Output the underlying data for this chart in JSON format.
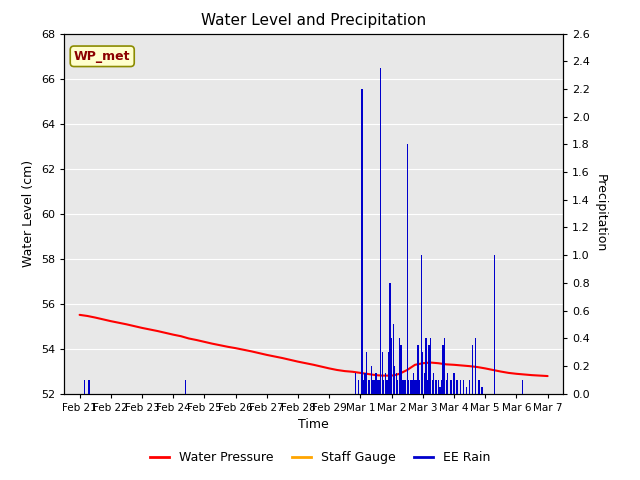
{
  "title": "Water Level and Precipitation",
  "xlabel": "Time",
  "ylabel_left": "Water Level (cm)",
  "ylabel_right": "Precipitation",
  "annotation": "WP_met",
  "plot_bg_color": "#e8e8e8",
  "ylim_left": [
    52,
    68
  ],
  "ylim_right": [
    0.0,
    2.6
  ],
  "yticks_left": [
    52,
    54,
    56,
    58,
    60,
    62,
    64,
    66,
    68
  ],
  "yticks_right": [
    0.0,
    0.2,
    0.4,
    0.6,
    0.8,
    1.0,
    1.2,
    1.4,
    1.6,
    1.8,
    2.0,
    2.2,
    2.4,
    2.6
  ],
  "water_pressure_color": "#ff0000",
  "staff_gauge_color": "#ffa500",
  "ee_rain_color": "#0000cc",
  "annotation_box_color": "#ffffcc",
  "annotation_text_color": "#8b0000",
  "annotation_border_color": "#8b8b00",
  "wp_x": [
    0,
    0.25,
    0.5,
    0.75,
    1,
    1.25,
    1.5,
    1.75,
    2,
    2.25,
    2.5,
    2.75,
    3,
    3.25,
    3.5,
    3.75,
    4,
    4.25,
    4.5,
    4.75,
    5,
    5.25,
    5.5,
    5.75,
    6,
    6.25,
    6.5,
    6.75,
    7,
    7.25,
    7.5,
    7.75,
    8,
    8.25,
    8.5,
    8.75,
    9,
    9.1,
    9.2,
    9.3,
    9.4,
    9.5,
    9.6,
    9.7,
    9.8,
    9.9,
    10,
    10.1,
    10.25,
    10.5,
    10.75,
    11,
    11.25,
    11.5,
    11.75,
    12,
    12.25,
    12.5,
    12.75,
    13,
    13.25,
    13.5,
    13.75,
    14,
    14.25,
    14.5,
    14.75,
    15
  ],
  "wp_y": [
    55.5,
    55.45,
    55.38,
    55.3,
    55.22,
    55.15,
    55.08,
    55.0,
    54.92,
    54.85,
    54.78,
    54.7,
    54.62,
    54.55,
    54.45,
    54.38,
    54.3,
    54.22,
    54.15,
    54.08,
    54.02,
    53.95,
    53.88,
    53.8,
    53.72,
    53.65,
    53.58,
    53.5,
    53.42,
    53.35,
    53.28,
    53.2,
    53.12,
    53.05,
    53.0,
    52.97,
    52.92,
    52.9,
    52.88,
    52.86,
    52.84,
    52.82,
    52.81,
    52.8,
    52.8,
    52.8,
    52.8,
    52.82,
    52.88,
    53.05,
    53.28,
    53.35,
    53.38,
    53.35,
    53.3,
    53.28,
    53.25,
    53.22,
    53.18,
    53.12,
    53.05,
    52.98,
    52.92,
    52.88,
    52.85,
    52.82,
    52.8,
    52.78
  ],
  "rain_x": [
    0.15,
    0.3,
    3.4,
    8.85,
    8.95,
    9.05,
    9.1,
    9.15,
    9.2,
    9.25,
    9.3,
    9.35,
    9.4,
    9.45,
    9.5,
    9.55,
    9.6,
    9.65,
    9.7,
    9.75,
    9.8,
    9.85,
    9.9,
    9.95,
    10.0,
    10.05,
    10.1,
    10.15,
    10.2,
    10.25,
    10.3,
    10.35,
    10.4,
    10.45,
    10.5,
    10.55,
    10.6,
    10.65,
    10.7,
    10.75,
    10.8,
    10.85,
    10.9,
    10.95,
    11.0,
    11.05,
    11.1,
    11.15,
    11.2,
    11.25,
    11.3,
    11.35,
    11.4,
    11.45,
    11.5,
    11.55,
    11.6,
    11.65,
    11.7,
    11.75,
    11.8,
    11.9,
    12.0,
    12.1,
    12.2,
    12.3,
    12.4,
    12.5,
    12.6,
    12.7,
    12.8,
    12.9,
    13.3,
    14.2
  ],
  "rain_y": [
    0.1,
    0.1,
    0.1,
    0.15,
    0.1,
    2.2,
    0.1,
    0.15,
    0.3,
    0.1,
    0.1,
    0.2,
    0.1,
    0.1,
    0.15,
    0.1,
    0.1,
    2.35,
    0.3,
    0.1,
    0.15,
    0.1,
    0.3,
    0.8,
    0.4,
    0.5,
    0.2,
    0.15,
    0.1,
    0.4,
    0.35,
    0.1,
    0.1,
    0.1,
    1.8,
    0.1,
    0.1,
    0.1,
    0.15,
    0.1,
    0.1,
    0.35,
    0.1,
    1.0,
    0.3,
    0.15,
    0.4,
    0.1,
    0.35,
    0.4,
    0.1,
    0.15,
    0.1,
    0.1,
    0.1,
    0.05,
    0.1,
    0.35,
    0.4,
    0.1,
    0.15,
    0.1,
    0.15,
    0.1,
    0.1,
    0.1,
    0.05,
    0.1,
    0.35,
    0.4,
    0.1,
    0.05,
    1.0,
    0.1
  ],
  "xtick_labels": [
    "Feb 21",
    "Feb 22",
    "Feb 23",
    "Feb 24",
    "Feb 25",
    "Feb 26",
    "Feb 27",
    "Feb 28",
    "Feb 29",
    "Mar 1",
    "Mar 2",
    "Mar 3",
    "Mar 4",
    "Mar 5",
    "Mar 6",
    "Mar 7"
  ]
}
